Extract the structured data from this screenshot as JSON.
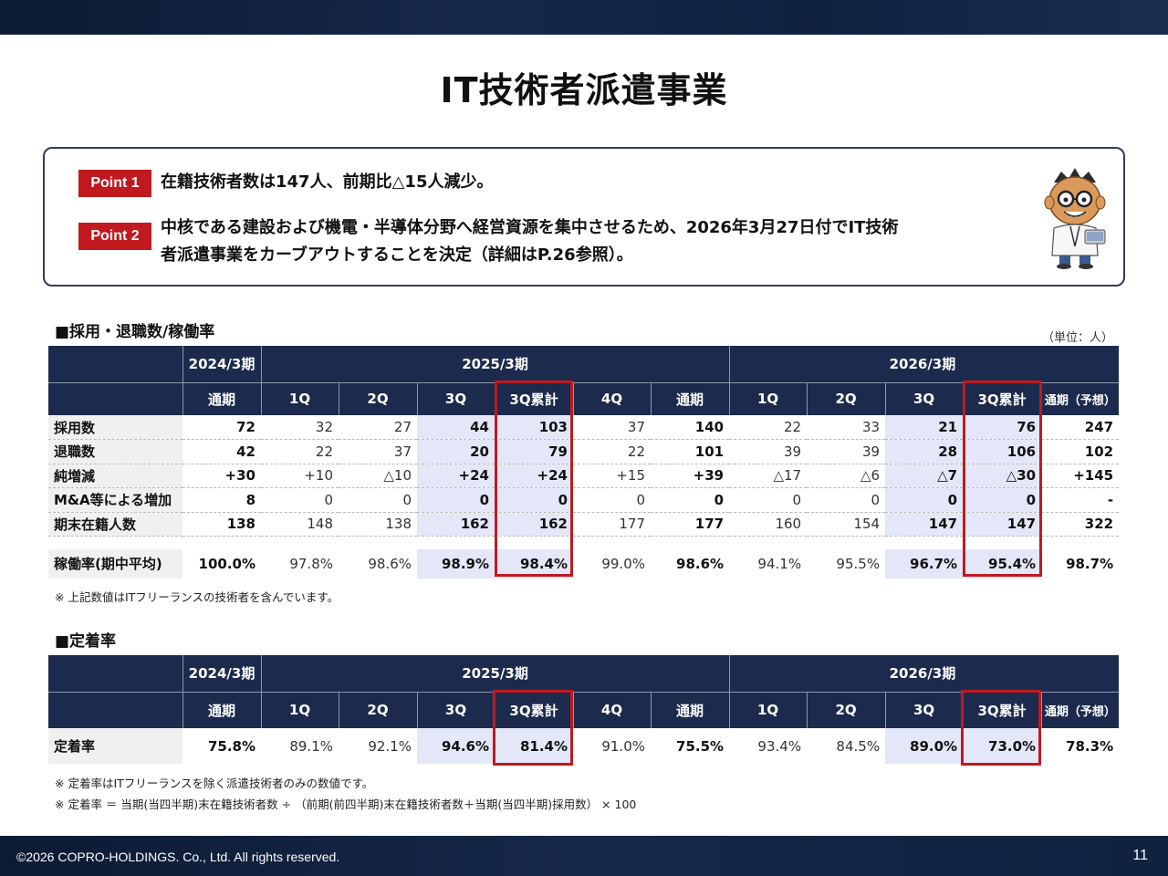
{
  "title": "IT技術者派遣事業",
  "points": [
    {
      "badge": "Point 1",
      "line1": "在籍技術者数は147人、前期比△15人減少。",
      "line2": ""
    },
    {
      "badge": "Point 2",
      "line1": "中核である建設および機電・半導体分野へ経営資源を集中させるため、2026年3月27日付でIT技術",
      "line2": "者派遣事業をカーブアウトすることを決定（詳細はP.26参照）。"
    }
  ],
  "section1": {
    "title": "■採用・退職数/稼働率",
    "unit": "（単位：人）",
    "periods": [
      "2024/3期",
      "2025/3期",
      "2026/3期"
    ],
    "columns": [
      "通期",
      "1Q",
      "2Q",
      "3Q",
      "3Q累計",
      "4Q",
      "通期",
      "1Q",
      "2Q",
      "3Q",
      "3Q累計",
      "通期（予想）"
    ],
    "rows": [
      {
        "label": "採用数",
        "values": [
          "72",
          "32",
          "27",
          "44",
          "103",
          "37",
          "140",
          "22",
          "33",
          "21",
          "76",
          "247"
        ]
      },
      {
        "label": "退職数",
        "values": [
          "42",
          "22",
          "37",
          "20",
          "79",
          "22",
          "101",
          "39",
          "39",
          "28",
          "106",
          "102"
        ]
      },
      {
        "label": "純増減",
        "values": [
          "+30",
          "+10",
          "△10",
          "+24",
          "+24",
          "+15",
          "+39",
          "△17",
          "△6",
          "△7",
          "△30",
          "+145"
        ]
      },
      {
        "label": "M&A等による増加",
        "values": [
          "8",
          "0",
          "0",
          "0",
          "0",
          "0",
          "0",
          "0",
          "0",
          "0",
          "0",
          "-"
        ]
      },
      {
        "label": "期末在籍人数",
        "values": [
          "138",
          "148",
          "138",
          "162",
          "162",
          "177",
          "177",
          "160",
          "154",
          "147",
          "147",
          "322"
        ]
      }
    ],
    "rate_row": {
      "label": "稼働率(期中平均)",
      "values": [
        "100.0%",
        "97.8%",
        "98.6%",
        "98.9%",
        "98.4%",
        "99.0%",
        "98.6%",
        "94.1%",
        "95.5%",
        "96.7%",
        "95.4%",
        "98.7%"
      ]
    },
    "note": "※ 上記数値はITフリーランスの技術者を含んでいます。"
  },
  "section2": {
    "title": "■定着率",
    "periods": [
      "2024/3期",
      "2025/3期",
      "2026/3期"
    ],
    "columns": [
      "通期",
      "1Q",
      "2Q",
      "3Q",
      "3Q累計",
      "4Q",
      "通期",
      "1Q",
      "2Q",
      "3Q",
      "3Q累計",
      "通期（予想）"
    ],
    "row": {
      "label": "定着率",
      "values": [
        "75.8%",
        "89.1%",
        "92.1%",
        "94.6%",
        "81.4%",
        "91.0%",
        "75.5%",
        "93.4%",
        "84.5%",
        "89.0%",
        "73.0%",
        "78.3%"
      ]
    },
    "note1": "※ 定着率はITフリーランスを除く派遣技術者のみの数値です。",
    "note2": "※ 定着率 ＝ 当期(当四半期)末在籍技術者数 ÷ （前期(前四半期)末在籍技術者数＋当期(当四半期)採用数） × 100"
  },
  "footer": {
    "copyright": "©2026 COPRO-HOLDINGS. Co., Ltd. All rights reserved.",
    "page": "11"
  },
  "colors": {
    "navy": "#1c2b4d",
    "accent_red": "#c0191f",
    "highlight": "#e3e7f7"
  },
  "icons": [
    "mascot-illustration"
  ]
}
